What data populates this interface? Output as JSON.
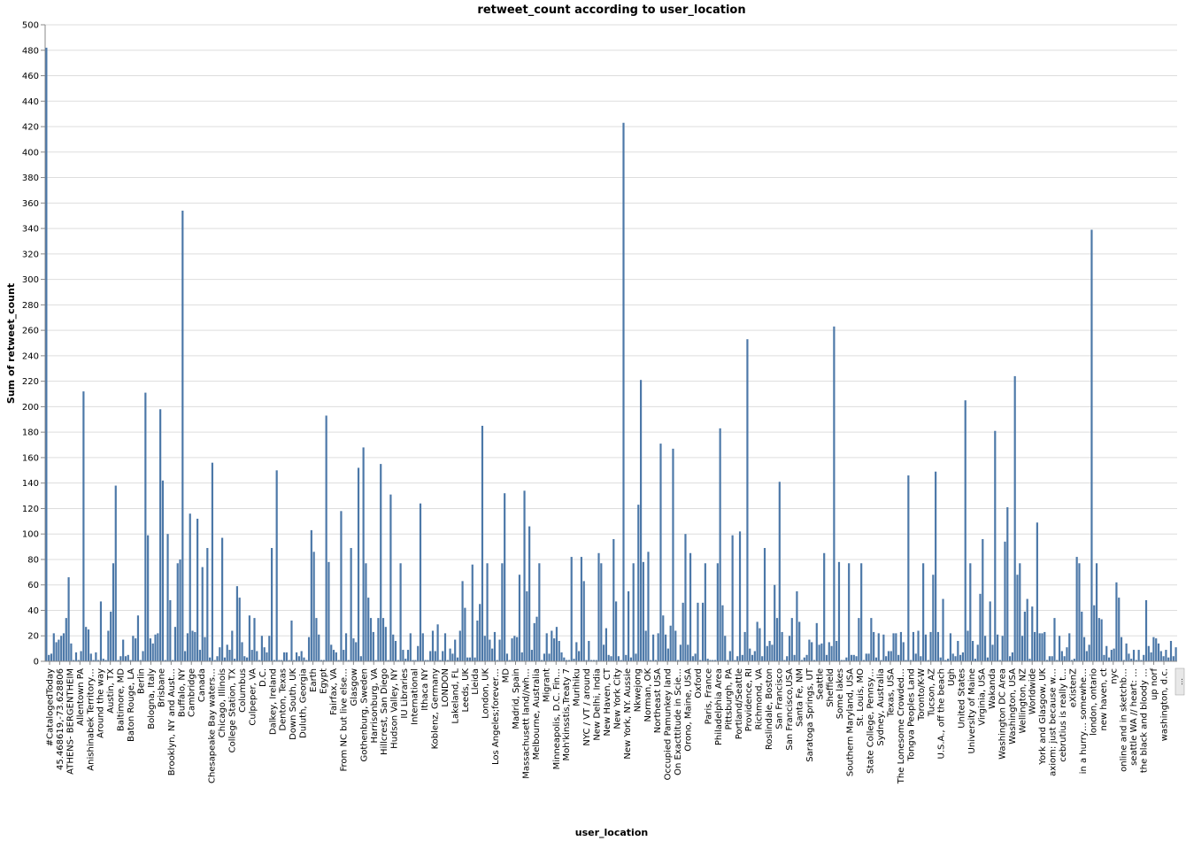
{
  "chart_data": {
    "type": "bar",
    "title": "retweet_count according to user_location",
    "xlabel": "user_location",
    "ylabel": "Sum of retweet_count",
    "ylim": [
      0,
      500
    ],
    "yticks": [
      0,
      20,
      40,
      60,
      80,
      100,
      120,
      140,
      160,
      180,
      200,
      220,
      240,
      260,
      280,
      300,
      320,
      340,
      360,
      380,
      400,
      420,
      440,
      460,
      480,
      500
    ],
    "grid": true,
    "bar_color": "#4c78a8",
    "values": [
      482,
      5,
      6,
      22,
      15,
      17,
      20,
      22,
      34,
      66,
      14,
      1,
      7,
      1,
      8,
      212,
      27,
      25,
      6,
      1,
      7,
      1,
      47,
      2,
      1,
      24,
      39,
      77,
      138,
      1,
      4,
      17,
      4,
      5,
      1,
      20,
      18,
      36,
      1,
      8,
      211,
      99,
      18,
      14,
      21,
      22,
      198,
      142,
      1,
      100,
      48,
      1,
      27,
      77,
      80,
      354,
      8,
      22,
      116,
      24,
      23,
      112,
      9,
      74,
      19,
      89,
      3,
      156,
      1,
      4,
      11,
      97,
      3,
      13,
      9,
      24,
      2,
      59,
      50,
      15,
      4,
      3,
      36,
      9,
      34,
      8,
      1,
      20,
      11,
      7,
      20,
      89,
      1,
      150,
      1,
      1,
      7,
      7,
      1,
      32,
      1,
      7,
      4,
      8,
      3,
      1,
      19,
      103,
      86,
      34,
      21,
      1,
      1,
      193,
      78,
      13,
      9,
      7,
      1,
      118,
      9,
      22,
      1,
      89,
      18,
      15,
      152,
      4,
      168,
      77,
      50,
      34,
      23,
      1,
      34,
      155,
      34,
      27,
      1,
      131,
      21,
      16,
      1,
      77,
      9,
      2,
      9,
      22,
      1,
      1,
      12,
      124,
      22,
      1,
      1,
      8,
      24,
      8,
      29,
      1,
      8,
      22,
      1,
      10,
      6,
      17,
      3,
      24,
      63,
      42,
      3,
      3,
      76,
      3,
      32,
      45,
      185,
      20,
      77,
      17,
      10,
      23,
      1,
      17,
      77,
      132,
      6,
      1,
      18,
      20,
      19,
      68,
      7,
      134,
      55,
      106,
      9,
      30,
      35,
      77,
      1,
      6,
      22,
      6,
      24,
      18,
      27,
      16,
      7,
      3,
      1,
      1,
      82,
      2,
      15,
      8,
      82,
      63,
      1,
      16,
      1,
      1,
      1,
      85,
      77,
      13,
      26,
      5,
      4,
      96,
      47,
      4,
      1,
      423,
      5,
      55,
      3,
      77,
      6,
      123,
      221,
      78,
      24,
      86,
      1,
      21,
      1,
      22,
      171,
      36,
      21,
      10,
      28,
      167,
      24,
      1,
      13,
      46,
      100,
      13,
      85,
      4,
      6,
      46,
      1,
      46,
      77,
      2,
      1,
      1,
      1,
      77,
      183,
      44,
      20,
      1,
      8,
      99,
      1,
      4,
      102,
      5,
      23,
      253,
      10,
      5,
      8,
      31,
      26,
      4,
      89,
      12,
      16,
      13,
      60,
      34,
      141,
      23,
      1,
      4,
      20,
      34,
      5,
      55,
      31,
      1,
      3,
      5,
      17,
      15,
      1,
      30,
      13,
      14,
      85,
      5,
      15,
      12,
      263,
      16,
      78,
      1,
      1,
      3,
      77,
      5,
      5,
      4,
      34,
      77,
      1,
      6,
      6,
      34,
      23,
      3,
      22,
      1,
      21,
      4,
      8,
      8,
      22,
      22,
      5,
      23,
      15,
      1,
      146,
      1,
      23,
      6,
      24,
      4,
      77,
      21,
      1,
      23,
      68,
      149,
      23,
      3,
      49,
      1,
      2,
      22,
      6,
      4,
      16,
      5,
      7,
      205,
      24,
      77,
      16,
      2,
      13,
      53,
      96,
      20,
      3,
      47,
      13,
      181,
      21,
      1,
      20,
      94,
      121,
      4,
      7,
      224,
      68,
      77,
      20,
      39,
      49,
      2,
      43,
      23,
      109,
      22,
      22,
      23,
      1,
      4,
      4,
      34,
      1,
      20,
      8,
      4,
      11,
      22,
      1,
      2,
      82,
      77,
      39,
      19,
      8,
      13,
      339,
      44,
      77,
      34,
      33,
      5,
      12,
      3,
      9,
      10,
      62,
      50,
      19,
      1,
      14,
      6,
      2,
      9,
      1,
      9,
      1,
      5,
      48,
      12,
      7,
      19,
      18,
      14,
      8,
      4,
      9,
      3,
      16,
      4,
      11
    ],
    "tick_labels": [
      "#CatalogedToday",
      "45.468619,-73.628806",
      "ATHENS- BERGENTHEIM",
      "Allentown PA",
      "Anishinabek Territory…",
      "Around the way",
      "Austin, TX",
      "Baltimore, MD",
      "Baton Rouge, LA",
      "Berlin",
      "Bologna, Italy",
      "Brisbane",
      "Brooklyn, NY and Aust…",
      "Buffalo, NY",
      "Cambridge",
      "Canada",
      "Chesapeake Bay waters…",
      "Chicago, Illinois",
      "College Station, TX",
      "Columbus",
      "Culpeper, VA",
      "D.C.",
      "Dalkey, Ireland",
      "Denton, Texas",
      "Down South, UK",
      "Duluth, Georgia",
      "Earth",
      "Egypt",
      "Fairfax, VA",
      "From NC but live else…",
      "Glasgow",
      "Gothenburg, Sweden",
      "Harrisonburg, VA",
      "Hillcrest, San Diego",
      "Hudson Valley, NY",
      "IU Libraries",
      "International",
      "Ithaca NY",
      "Koblenz, Germany",
      "LONDON",
      "Lakeland, FL",
      "Leeds, UK",
      "Lleida",
      "London, UK",
      "Los Angeles;forever…",
      "MD",
      "Madrid, Spain",
      "Massachusett land//wh…",
      "Melbourne, Australia",
      "Migrant",
      "Minneapolis, D.C. Fin…",
      "Moh'kinsstis,Treaty 7",
      "Murihiku",
      "NYC / VT / around",
      "New Delhi, India",
      "New Haven, CT",
      "New York City",
      "New York, NY. Aussie",
      "Nkwejong",
      "Norman, OK",
      "Northeast USA",
      "Occupied Pamunkey land",
      "On Exacttitude in Scie…",
      "Orono, Maine, USA",
      "Oxford",
      "Paris, France",
      "Philadelphia Area",
      "Pittsburgh, PA",
      "Portland/Seattle",
      "Providence, RI",
      "Richmond, VA",
      "Roslindale, Boston",
      "San Francisco",
      "San Francisco,USA",
      "Santa Fe, NM",
      "Saratoga Springs, UT",
      "Seattle",
      "Sheffield",
      "Some lakes",
      "Southern Maryland, USA",
      "St. Louis, MO",
      "State College, Pennsy…",
      "Sydney, Australia",
      "Texas, USA",
      "The Lonesome Crowded…",
      "Tongva Peoples Land",
      "Toronto/K-W",
      "Tucson, AZ",
      "U.S.A., off the beach",
      "Ugh",
      "United States",
      "University of Maine",
      "Virginia, USA",
      "Wakanda",
      "Washington DC Area",
      "Washington, USA",
      "Wellington, NZ",
      "Worldwide",
      "York and Glasgow, UK",
      "axiom: just because w…",
      "cebrutius is really t…",
      "eXistenZ",
      "in a hurry… somewhe…",
      "london, ontario",
      "new haven, ct",
      "nyc",
      "online and in sketchb…",
      "seattle WA // heart: …",
      "the black and bloody …",
      "up norf",
      "washington, d.c."
    ],
    "overflow_marker": "…"
  }
}
